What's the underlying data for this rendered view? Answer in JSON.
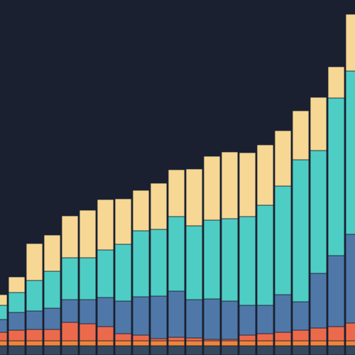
{
  "chart_data": {
    "type": "bar",
    "stacked": true,
    "background": "#1b2030",
    "ylim": [
      0,
      500
    ],
    "series": [
      {
        "color": "#34495e",
        "values": [
          13,
          13,
          13,
          13,
          13,
          13,
          13,
          13,
          13,
          13,
          13,
          13,
          13,
          13,
          13,
          13,
          13,
          13,
          13,
          13,
          13
        ]
      },
      {
        "color": "#f0843c",
        "values": [
          7,
          7,
          7,
          7,
          7,
          7,
          7,
          7,
          7,
          7,
          7,
          7,
          7,
          7,
          7,
          7,
          7,
          7,
          7,
          7,
          7
        ]
      },
      {
        "color": "#ec6a4c",
        "values": [
          12,
          15,
          16,
          16,
          26,
          24,
          20,
          10,
          8,
          3,
          5,
          4,
          2,
          2,
          8,
          10,
          12,
          15,
          18,
          20,
          25
        ]
      },
      {
        "color": "#4f78a8",
        "values": [
          18,
          25,
          26,
          30,
          32,
          34,
          41,
          46,
          54,
          60,
          65,
          54,
          57,
          54,
          42,
          40,
          53,
          40,
          77,
          100,
          125
        ]
      },
      {
        "color": "#4ecdc4",
        "values": [
          20,
          28,
          43,
          52,
          59,
          59,
          67,
          80,
          93,
          94,
          105,
          104,
          111,
          116,
          125,
          141,
          153,
          200,
          173,
          222,
          230
        ]
      },
      {
        "color": "#f7d794",
        "values": [
          15,
          22,
          52,
          51,
          59,
          67,
          71,
          64,
          57,
          65,
          66,
          80,
          90,
          94,
          90,
          85,
          78,
          69,
          75,
          44,
          80
        ]
      }
    ]
  }
}
